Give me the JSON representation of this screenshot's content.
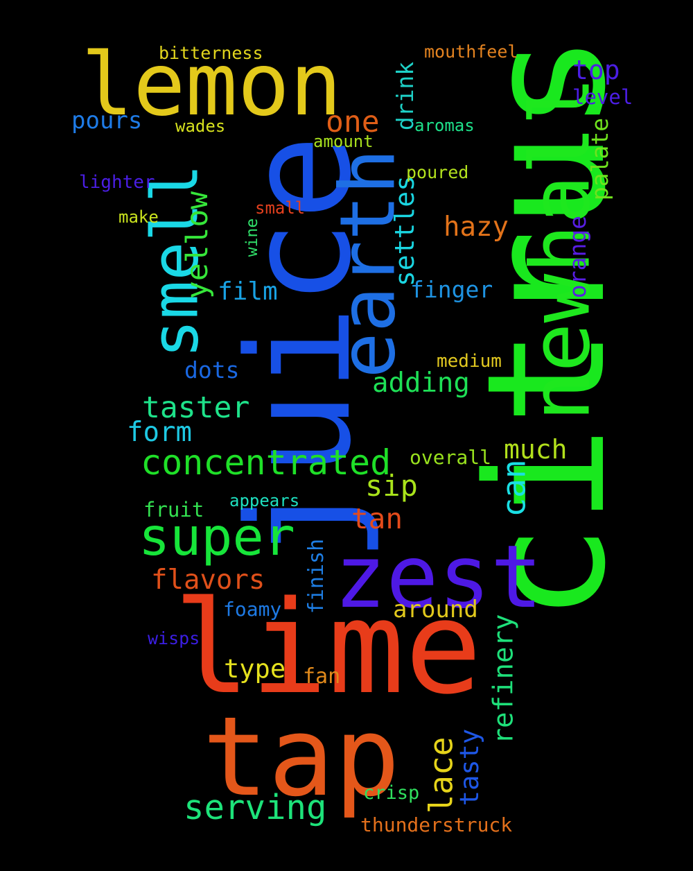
{
  "words": [
    {
      "text": "citrus",
      "color": "#19e81e"
    },
    {
      "text": "juice",
      "color": "#1750e6"
    },
    {
      "text": "lime",
      "color": "#e83c1a"
    },
    {
      "text": "tap",
      "color": "#e4571a"
    },
    {
      "text": "lemon",
      "color": "#e3c91b"
    },
    {
      "text": "zest",
      "color": "#4e19e5"
    },
    {
      "text": "newhall",
      "color": "#1ee81e"
    },
    {
      "text": "earth",
      "color": "#1e6fe4"
    },
    {
      "text": "smell",
      "color": "#1ad8e6"
    },
    {
      "text": "super",
      "color": "#17e53a"
    },
    {
      "text": "concentrated",
      "color": "#1fe028"
    },
    {
      "text": "serving",
      "color": "#1de37a"
    },
    {
      "text": "taster",
      "color": "#1ee28a"
    },
    {
      "text": "yellow",
      "color": "#36e63a"
    },
    {
      "text": "one",
      "color": "#e05e17"
    },
    {
      "text": "hazy",
      "color": "#e3731a"
    },
    {
      "text": "adding",
      "color": "#1ee056"
    },
    {
      "text": "flavors",
      "color": "#e0501a"
    },
    {
      "text": "tan",
      "color": "#e44b1b"
    },
    {
      "text": "sip",
      "color": "#a9e31b"
    },
    {
      "text": "much",
      "color": "#b2e01c"
    },
    {
      "text": "form",
      "color": "#1ec9e4"
    },
    {
      "text": "film",
      "color": "#19a2e4"
    },
    {
      "text": "dots",
      "color": "#1a68e2"
    },
    {
      "text": "pours",
      "color": "#1e7be6"
    },
    {
      "text": "finger",
      "color": "#1e93e2"
    },
    {
      "text": "settles",
      "color": "#1ad6e2"
    },
    {
      "text": "drink",
      "color": "#1ed1c7"
    },
    {
      "text": "can",
      "color": "#1adfe4"
    },
    {
      "text": "refinery",
      "color": "#1ee07a"
    },
    {
      "text": "tasty",
      "color": "#1e57e6"
    },
    {
      "text": "lace",
      "color": "#e6d41a"
    },
    {
      "text": "top",
      "color": "#4b1ee4"
    },
    {
      "text": "level",
      "color": "#4c1ee4"
    },
    {
      "text": "palate",
      "color": "#70e21e"
    },
    {
      "text": "orange",
      "color": "#581ee4"
    },
    {
      "text": "around",
      "color": "#e2c91c"
    },
    {
      "text": "type",
      "color": "#e6e21e"
    },
    {
      "text": "fan",
      "color": "#e28a1b"
    },
    {
      "text": "medium",
      "color": "#e1c820"
    },
    {
      "text": "overall",
      "color": "#99e21e"
    },
    {
      "text": "fruit",
      "color": "#33e050"
    },
    {
      "text": "appears",
      "color": "#1ee0c0"
    },
    {
      "text": "finish",
      "color": "#1e7ee4"
    },
    {
      "text": "foamy",
      "color": "#1e7ae4"
    },
    {
      "text": "crisp",
      "color": "#30e05f"
    },
    {
      "text": "thunderstruck",
      "color": "#e3701c"
    },
    {
      "text": "mouthfeel",
      "color": "#e48320"
    },
    {
      "text": "bitterness",
      "color": "#e3d61e"
    },
    {
      "text": "wades",
      "color": "#d7e21e"
    },
    {
      "text": "amount",
      "color": "#a8e01e"
    },
    {
      "text": "aromas",
      "color": "#1ee08a"
    },
    {
      "text": "poured",
      "color": "#b3e21e"
    },
    {
      "text": "lighter",
      "color": "#4a1ee4"
    },
    {
      "text": "small",
      "color": "#e4401e"
    },
    {
      "text": "make",
      "color": "#c9e21e"
    },
    {
      "text": "wine",
      "color": "#30e06a"
    },
    {
      "text": "wisps",
      "color": "#3b1ee4"
    }
  ]
}
